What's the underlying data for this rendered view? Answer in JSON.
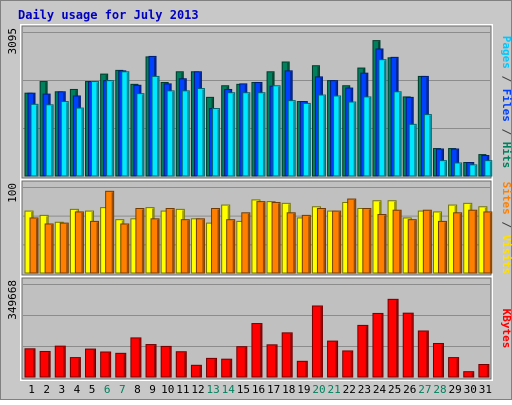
{
  "chart_data": {
    "type": "bar",
    "title": "Daily usage for July 2013",
    "categories": [
      "1",
      "2",
      "3",
      "4",
      "5",
      "6",
      "7",
      "8",
      "9",
      "10",
      "11",
      "12",
      "13",
      "14",
      "15",
      "16",
      "17",
      "18",
      "19",
      "20",
      "21",
      "22",
      "23",
      "24",
      "25",
      "26",
      "27",
      "28",
      "29",
      "30",
      "31"
    ],
    "weekend_days": [
      "6",
      "7",
      "13",
      "14",
      "20",
      "21",
      "27",
      "28"
    ],
    "panels": [
      {
        "id": "top",
        "ymax_label": "3095",
        "ylim": [
          0,
          3095
        ],
        "grid": true,
        "right_labels": [
          {
            "text": "Pages",
            "color": "#00c8ff"
          },
          {
            "text": " / ",
            "color": "#404040"
          },
          {
            "text": "Files",
            "color": "#0040ff"
          },
          {
            "text": " / ",
            "color": "#404040"
          },
          {
            "text": "Hits",
            "color": "#00805c"
          }
        ],
        "series": [
          {
            "name": "Hits",
            "color": "#00805c",
            "values": [
              1780,
              2030,
              1810,
              1860,
              2030,
              2190,
              2270,
              1970,
              2560,
              2010,
              2240,
              2240,
              1690,
              1940,
              1970,
              2010,
              2240,
              2450,
              1600,
              2370,
              2050,
              1940,
              2320,
              2910,
              2540,
              1700,
              2140,
              590,
              590,
              290,
              460
            ]
          },
          {
            "name": "Files",
            "color": "#0040ff",
            "values": [
              1780,
              1760,
              1810,
              1720,
              2030,
              2050,
              2260,
              1950,
              2570,
              1980,
              2090,
              2240,
              1450,
              1860,
              1980,
              2010,
              1930,
              2260,
              1600,
              2130,
              2050,
              1890,
              2210,
              2730,
              2550,
              1690,
              2140,
              580,
              580,
              290,
              440
            ]
          },
          {
            "name": "Pages",
            "color": "#00e8ff",
            "values": [
              1540,
              1530,
              1600,
              1460,
              2030,
              2050,
              2240,
              1770,
              2140,
              1830,
              1830,
              1880,
              1450,
              1790,
              1790,
              1790,
              1940,
              1620,
              1560,
              1740,
              1720,
              1590,
              1700,
              2500,
              1810,
              1110,
              1320,
              330,
              280,
              240,
              330
            ]
          }
        ]
      },
      {
        "id": "middle",
        "ymax_label": "100",
        "ylim": [
          0,
          100
        ],
        "grid": true,
        "right_labels": [
          {
            "text": "Sites",
            "color": "#ff8000"
          },
          {
            "text": " / ",
            "color": "#404040"
          },
          {
            "text": "Visits",
            "color": "#ffe000"
          }
        ],
        "series": [
          {
            "name": "Visits",
            "color": "#ffff00",
            "values": [
              72,
              67,
              59,
              74,
              72,
              76,
              62,
              63,
              76,
              72,
              74,
              63,
              58,
              79,
              60,
              85,
              83,
              81,
              64,
              77,
              72,
              82,
              75,
              84,
              84,
              64,
              72,
              71,
              79,
              81,
              77
            ]
          },
          {
            "name": "Sites",
            "color": "#ff8000",
            "values": [
              64,
              57,
              58,
              71,
              60,
              95,
              57,
              75,
              63,
              75,
              62,
              63,
              75,
              62,
              70,
              83,
              82,
              70,
              67,
              75,
              72,
              86,
              75,
              68,
              73,
              62,
              73,
              60,
              70,
              73,
              71
            ]
          }
        ]
      },
      {
        "id": "bottom",
        "ymax_label": "349668",
        "ylim": [
          0,
          349668
        ],
        "grid": true,
        "right_labels": [
          {
            "text": "KBytes",
            "color": "#ff0000"
          }
        ],
        "series": [
          {
            "name": "KBytes",
            "color": "#ff0000",
            "values": [
              106000,
              96000,
              116000,
              73000,
              105000,
              94000,
              89000,
              147000,
              122000,
              115000,
              95000,
              44000,
              70000,
              67000,
              114000,
              201000,
              121000,
              166000,
              59000,
              267000,
              135000,
              98000,
              194000,
              239000,
              292000,
              240000,
              173000,
              126000,
              73000,
              20000,
              47000
            ]
          }
        ]
      }
    ]
  }
}
